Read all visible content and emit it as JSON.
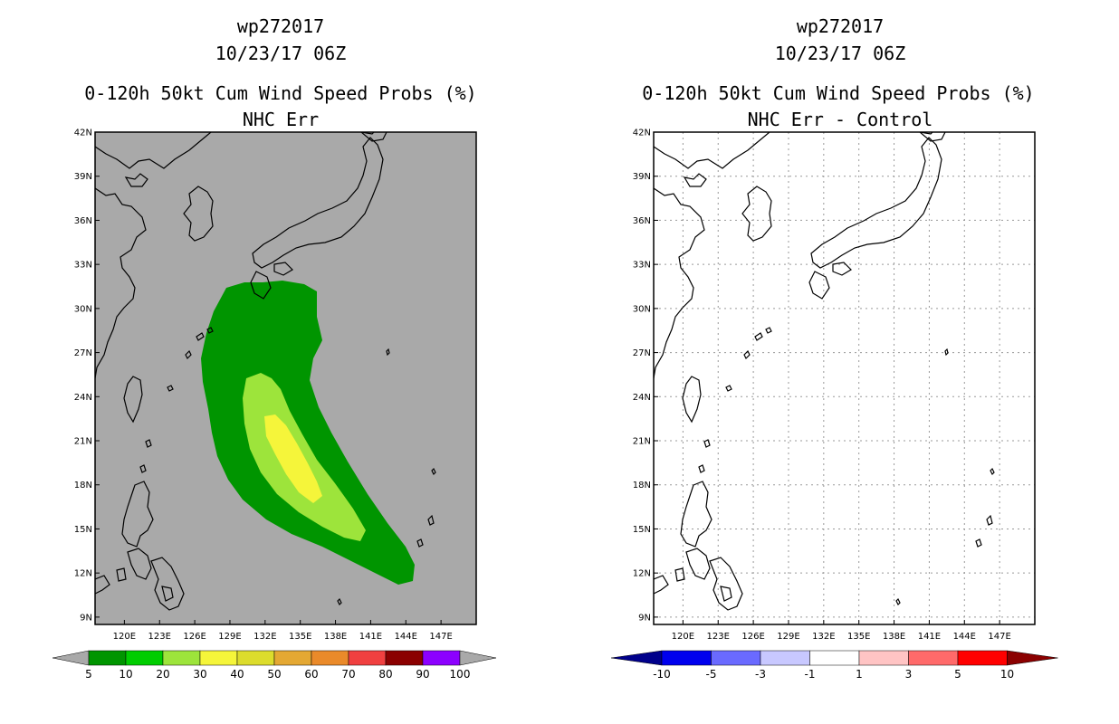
{
  "panels": [
    {
      "storm_id": "wp272017",
      "datetime": "10/23/17 06Z",
      "title": "0-120h 50kt Cum Wind Speed Probs (%)",
      "subtitle": "NHC Err"
    },
    {
      "storm_id": "wp272017",
      "datetime": "10/23/17 06Z",
      "title": "0-120h 50kt Cum Wind Speed Probs (%)",
      "subtitle": "NHC Err - Control"
    }
  ],
  "chart_data": [
    {
      "type": "contour-map",
      "title": "0-120h 50kt Cum Wind Speed Probs (%)",
      "subtitle": "NHC Err",
      "x_ticks": [
        "120E",
        "123E",
        "126E",
        "129E",
        "132E",
        "135E",
        "138E",
        "141E",
        "144E",
        "147E"
      ],
      "y_ticks": [
        "42N",
        "39N",
        "36N",
        "33N",
        "30N",
        "27N",
        "24N",
        "21N",
        "18N",
        "15N",
        "12N",
        "9N"
      ],
      "xlim": [
        117.5,
        150
      ],
      "ylim": [
        8.5,
        42
      ],
      "background": "#a9a9a9",
      "grid": false,
      "colorbar": {
        "levels": [
          "5",
          "10",
          "20",
          "30",
          "40",
          "50",
          "60",
          "70",
          "80",
          "90",
          "100"
        ],
        "colors": [
          "#009500",
          "#00cd00",
          "#9de43b",
          "#f5f53a",
          "#dcdc2c",
          "#e4a833",
          "#ea8a2a",
          "#f04040",
          "#8b0000",
          "#8c00ff"
        ],
        "end_color": "#a9a9a9"
      }
    },
    {
      "type": "contour-map",
      "title": "0-120h 50kt Cum Wind Speed Probs (%)",
      "subtitle": "NHC Err - Control",
      "x_ticks": [
        "120E",
        "123E",
        "126E",
        "129E",
        "132E",
        "135E",
        "138E",
        "141E",
        "144E",
        "147E"
      ],
      "y_ticks": [
        "42N",
        "39N",
        "36N",
        "33N",
        "30N",
        "27N",
        "24N",
        "21N",
        "18N",
        "15N",
        "12N",
        "9N"
      ],
      "xlim": [
        117.5,
        150
      ],
      "ylim": [
        8.5,
        42
      ],
      "background": "#ffffff",
      "grid": true,
      "colorbar": {
        "levels": [
          "-10",
          "-5",
          "-3",
          "-1",
          "1",
          "3",
          "5",
          "10"
        ],
        "colors": [
          "#0000ee",
          "#6a6aff",
          "#c8c8ff",
          "#ffffff",
          "#ffc4c4",
          "#ff6a6a",
          "#ff0000"
        ],
        "end_colors": [
          "#00008b",
          "#8b0000"
        ]
      }
    }
  ]
}
